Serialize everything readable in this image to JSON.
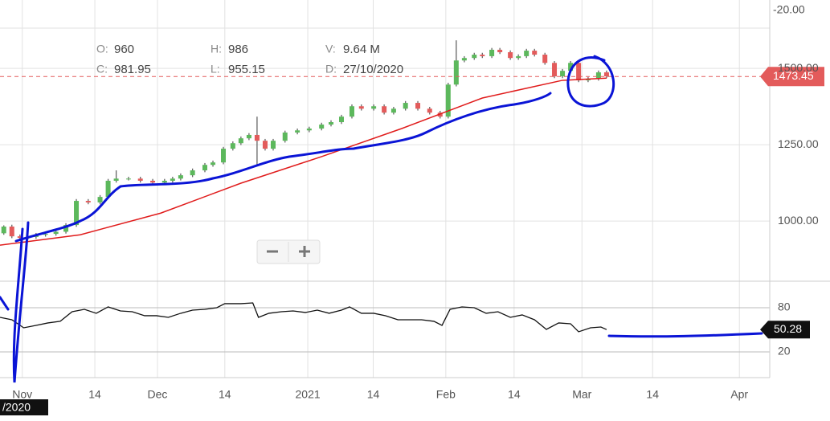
{
  "chart_data": {
    "type": "candlestick",
    "header": [
      {
        "label": "O:",
        "value": "960"
      },
      {
        "label": "H:",
        "value": "986"
      },
      {
        "label": "V:",
        "value": "9.64 M"
      },
      {
        "label": "C:",
        "value": "981.95"
      },
      {
        "label": "L:",
        "value": "955.15"
      },
      {
        "label": "D:",
        "value": "27/10/2020"
      }
    ],
    "xlim": [
      -4.7,
      157.6
    ],
    "xticks": [
      {
        "value": 0,
        "label": "Nov"
      },
      {
        "value": 15.3,
        "label": "14"
      },
      {
        "value": 28.5,
        "label": "Dec"
      },
      {
        "value": 42.7,
        "label": "14"
      },
      {
        "value": 60.2,
        "label": "2021"
      },
      {
        "value": 74,
        "label": "14"
      },
      {
        "value": 89.3,
        "label": "Feb"
      },
      {
        "value": 103.7,
        "label": "14"
      },
      {
        "value": 118,
        "label": "Mar"
      },
      {
        "value": 132.9,
        "label": "14"
      },
      {
        "value": 151.2,
        "label": "Apr"
      }
    ],
    "ylim": [
      803,
      1724
    ],
    "yticks": [
      {
        "value": 1000,
        "label": "1000.00"
      },
      {
        "value": 1250,
        "label": "1250.00"
      },
      {
        "value": 1500,
        "label": "1500.00"
      }
    ],
    "clipped_label": "-20.00",
    "date_label": "/2020",
    "last_price": 1473.45,
    "up_color": "#5cb85c",
    "down_color": "#e35b5b",
    "ma_color": "#e01b1b",
    "x": [
      -3.9,
      -2.2,
      -0.5,
      1.2,
      2.9,
      4.9,
      7.1,
      9.2,
      11.4,
      13.9,
      16.4,
      18.1,
      19.8,
      22.4,
      24.9,
      27.5,
      30,
      31.7,
      33.4,
      35.9,
      38.5,
      40.2,
      42.4,
      44.4,
      46.1,
      47.8,
      49.5,
      51.2,
      52.9,
      55.4,
      58,
      60.5,
      63.1,
      65.1,
      67.3,
      69.5,
      71.5,
      74.1,
      76.3,
      78.3,
      80.8,
      83.4,
      85.9,
      88.1,
      89.8,
      91.5,
      93.2,
      95.3,
      97,
      99,
      100.7,
      102.9,
      104.6,
      106.3,
      108,
      110.2,
      112.2,
      113.9,
      115.6,
      117.3,
      119.3,
      121.5,
      123.2
    ],
    "open": [
      960,
      981.95,
      950,
      945,
      948,
      955,
      958,
      965,
      987,
      1066,
      1061,
      1079,
      1132,
      1139,
      1139,
      1132,
      1126,
      1132,
      1139,
      1150,
      1166,
      1184,
      1192,
      1237,
      1255,
      1271,
      1282,
      1263,
      1237,
      1263,
      1290,
      1297,
      1303,
      1316,
      1324,
      1342,
      1376,
      1368,
      1376,
      1355,
      1368,
      1387,
      1368,
      1355,
      1342,
      1447,
      1526,
      1534,
      1545,
      1540,
      1561,
      1553,
      1534,
      1540,
      1558,
      1545,
      1518,
      1474,
      1492,
      1518,
      1461,
      1466,
      1487
    ],
    "high": [
      986,
      988,
      956,
      954,
      961,
      964,
      971,
      993,
      1072,
      1072,
      1085,
      1138,
      1166,
      1145,
      1145,
      1138,
      1138,
      1145,
      1156,
      1172,
      1190,
      1198,
      1243,
      1261,
      1277,
      1288,
      1342,
      1269,
      1269,
      1296,
      1303,
      1309,
      1322,
      1330,
      1348,
      1382,
      1382,
      1382,
      1382,
      1374,
      1393,
      1393,
      1374,
      1361,
      1453,
      1592,
      1540,
      1551,
      1551,
      1567,
      1567,
      1559,
      1546,
      1564,
      1564,
      1551,
      1524,
      1498,
      1524,
      1524,
      1472,
      1493,
      1493
    ],
    "low": [
      955.15,
      944,
      939,
      939,
      942,
      949,
      952,
      959,
      981,
      1055,
      1055,
      1073,
      1126,
      1133,
      1126,
      1120,
      1120,
      1126,
      1133,
      1144,
      1160,
      1178,
      1186,
      1231,
      1249,
      1265,
      1184,
      1231,
      1231,
      1257,
      1284,
      1291,
      1297,
      1310,
      1318,
      1336,
      1362,
      1362,
      1349,
      1349,
      1362,
      1362,
      1349,
      1336,
      1336,
      1441,
      1520,
      1528,
      1534,
      1534,
      1547,
      1528,
      1528,
      1534,
      1539,
      1512,
      1468,
      1468,
      1486,
      1455,
      1455,
      1460,
      1468
    ],
    "close": [
      981.95,
      950,
      945,
      948,
      955,
      958,
      965,
      987,
      1066,
      1061,
      1079,
      1132,
      1139,
      1139,
      1132,
      1126,
      1132,
      1139,
      1150,
      1166,
      1184,
      1192,
      1237,
      1255,
      1271,
      1282,
      1263,
      1237,
      1263,
      1290,
      1297,
      1303,
      1316,
      1324,
      1342,
      1376,
      1368,
      1376,
      1355,
      1368,
      1387,
      1368,
      1355,
      1342,
      1447,
      1526,
      1534,
      1545,
      1540,
      1561,
      1553,
      1534,
      1540,
      1558,
      1545,
      1518,
      1474,
      1492,
      1518,
      1461,
      1466,
      1487,
      1474
    ],
    "ma": {
      "x": [
        -4.7,
        12.2,
        29.2,
        46.1,
        63.1,
        80,
        97,
        113.9,
        123.2
      ],
      "values": [
        921,
        955,
        1026,
        1124,
        1211,
        1303,
        1403,
        1461,
        1468
      ]
    },
    "rsi": {
      "type": "line",
      "ylim": [
        -15,
        116
      ],
      "yticks": [
        20,
        80
      ],
      "color": "#111",
      "last": 50.28,
      "x": [
        -4.7,
        -2.2,
        0.3,
        2.9,
        5.4,
        8,
        10.5,
        13.1,
        15.6,
        18.1,
        20.7,
        23.2,
        25.8,
        28.3,
        30.8,
        33.4,
        35.9,
        38.5,
        41,
        42.7,
        46.1,
        48.6,
        49.8,
        52,
        54.6,
        57.1,
        59.7,
        62.2,
        64.7,
        67.3,
        69,
        71.5,
        74.1,
        76.6,
        79.2,
        81.7,
        84.2,
        86.8,
        88.5,
        90.2,
        92.7,
        95.3,
        97.8,
        100.3,
        102.9,
        105.4,
        108,
        110.5,
        113.1,
        115.6,
        117.3,
        119.8,
        122,
        123.2
      ],
      "values": [
        66.9,
        63.6,
        52.7,
        56,
        59.3,
        61.5,
        74.5,
        77.8,
        72.4,
        81.1,
        75.6,
        74.5,
        69.1,
        69.1,
        66.9,
        72.4,
        76.7,
        77.8,
        80,
        85.5,
        85.5,
        86.5,
        66.9,
        72.4,
        74.5,
        75.6,
        73.5,
        76.7,
        72.4,
        76.7,
        81.1,
        72.4,
        72.4,
        69.1,
        63.6,
        63.6,
        63.6,
        61.5,
        56,
        77.8,
        81.1,
        80,
        72.4,
        74.5,
        66.9,
        70.2,
        63.6,
        50.5,
        59.3,
        58.2,
        47.3,
        52.7,
        53.8,
        50.28
      ]
    }
  }
}
